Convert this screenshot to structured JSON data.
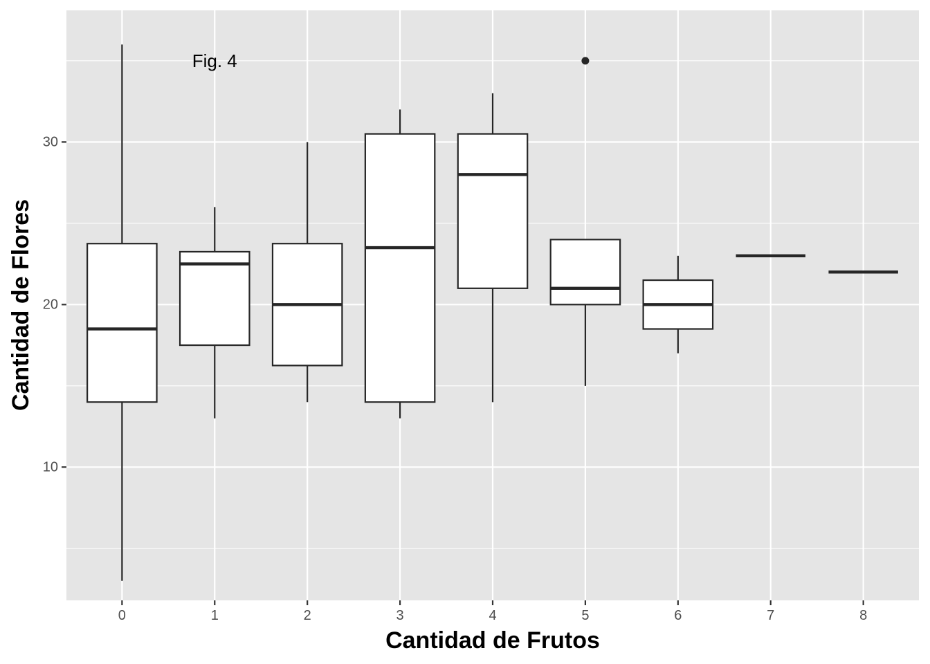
{
  "chart_data": {
    "type": "boxplot",
    "annotation": {
      "text": "Fig. 4",
      "x": 1,
      "y": 35
    },
    "xlabel": "Cantidad de Frutos",
    "ylabel": "Cantidad de Flores",
    "categories": [
      "0",
      "1",
      "2",
      "3",
      "4",
      "5",
      "6",
      "7",
      "8"
    ],
    "ylim": [
      1.8,
      38.1
    ],
    "y_ticks": [
      10,
      20,
      30
    ],
    "y_minor_ticks": [
      5,
      15,
      25,
      35
    ],
    "grid": true,
    "boxes": [
      {
        "x": "0",
        "whisker_low": 3,
        "q1": 14,
        "median": 18.5,
        "q3": 23.75,
        "whisker_high": 36
      },
      {
        "x": "1",
        "whisker_low": 13,
        "q1": 17.5,
        "median": 22.5,
        "q3": 23.25,
        "whisker_high": 26
      },
      {
        "x": "2",
        "whisker_low": 14,
        "q1": 16.25,
        "median": 20,
        "q3": 23.75,
        "whisker_high": 30
      },
      {
        "x": "3",
        "whisker_low": 13,
        "q1": 14,
        "median": 23.5,
        "q3": 30.5,
        "whisker_high": 32
      },
      {
        "x": "4",
        "whisker_low": 14,
        "q1": 21,
        "median": 28,
        "q3": 30.5,
        "whisker_high": 33
      },
      {
        "x": "5",
        "whisker_low": 15,
        "q1": 20,
        "median": 21,
        "q3": 24,
        "whisker_high": 24
      },
      {
        "x": "6",
        "whisker_low": 17,
        "q1": 18.5,
        "median": 20,
        "q3": 21.5,
        "whisker_high": 23
      },
      {
        "x": "7",
        "whisker_low": 23,
        "q1": 23,
        "median": 23,
        "q3": 23,
        "whisker_high": 23
      },
      {
        "x": "8",
        "whisker_low": 22,
        "q1": 22,
        "median": 22,
        "q3": 22,
        "whisker_high": 22
      }
    ],
    "outliers": [
      {
        "x": "5",
        "y": 35
      }
    ],
    "colors": {
      "panel": "#e5e5e5",
      "grid": "#ffffff",
      "box_fill": "#ffffff",
      "box_line": "#262626",
      "tick_text": "#4d4d4d"
    }
  }
}
